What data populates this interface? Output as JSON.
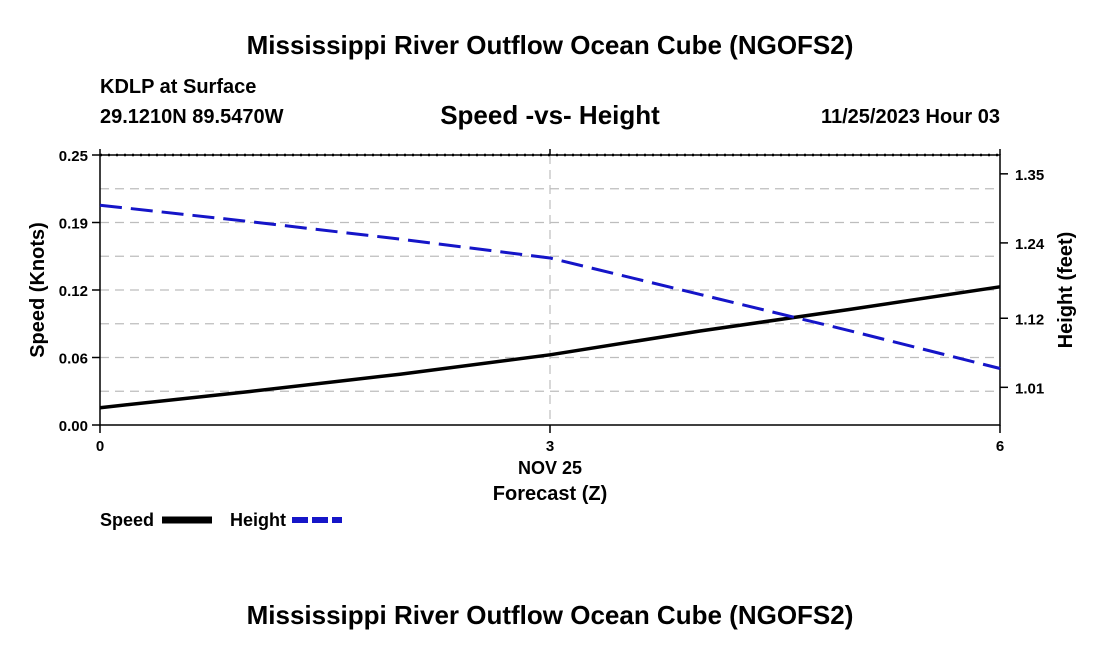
{
  "header": {
    "title": "Mississippi River Outflow Ocean Cube (NGOFS2)",
    "station": "KDLP at Surface",
    "coords": "29.1210N  89.5470W",
    "subtitle": "Speed -vs- Height",
    "datetime": "11/25/2023 Hour 03"
  },
  "footer": {
    "title": "Mississippi River Outflow Ocean Cube (NGOFS2)"
  },
  "colors": {
    "speed": "#000000",
    "height": "#1515c8",
    "grid": "#bdbdbd"
  },
  "chart_data": {
    "type": "line",
    "title": "Speed -vs- Height",
    "xlabel": "Forecast (Z)",
    "x_date_label": "NOV 25",
    "ylabel": "Speed (Knots)",
    "y2label": "Height (feet)",
    "xlim": [
      0,
      6
    ],
    "ylim": [
      0,
      0.25
    ],
    "y2lim": [
      0.95,
      1.38
    ],
    "x_ticks": [
      0,
      3,
      6
    ],
    "x_tick_labels": [
      "0",
      "3",
      "6"
    ],
    "y_ticks": [
      0,
      0.0625,
      0.125,
      0.1875,
      0.25
    ],
    "y_tick_labels": [
      "0.00",
      "0.06",
      "0.12",
      "0.19",
      "0.25"
    ],
    "y_grid": [
      0.03125,
      0.0625,
      0.09375,
      0.125,
      0.15625,
      0.1875,
      0.21875
    ],
    "y2_ticks": [
      1.01,
      1.12,
      1.24,
      1.35
    ],
    "y2_tick_labels": [
      "1.01",
      "1.12",
      "1.24",
      "1.35"
    ],
    "grid": true,
    "legend_position": "bottom-left",
    "series": [
      {
        "name": "Speed",
        "axis": "left",
        "style": "solid",
        "x": [
          0,
          1,
          2,
          3,
          4,
          5,
          6
        ],
        "values": [
          0.016,
          0.031,
          0.047,
          0.065,
          0.087,
          0.107,
          0.128
        ]
      },
      {
        "name": "Height",
        "axis": "right",
        "style": "dashed",
        "x": [
          0,
          1,
          2,
          3,
          4,
          5,
          6
        ],
        "values": [
          1.3,
          1.274,
          1.246,
          1.216,
          1.158,
          1.1,
          1.04
        ]
      }
    ]
  }
}
